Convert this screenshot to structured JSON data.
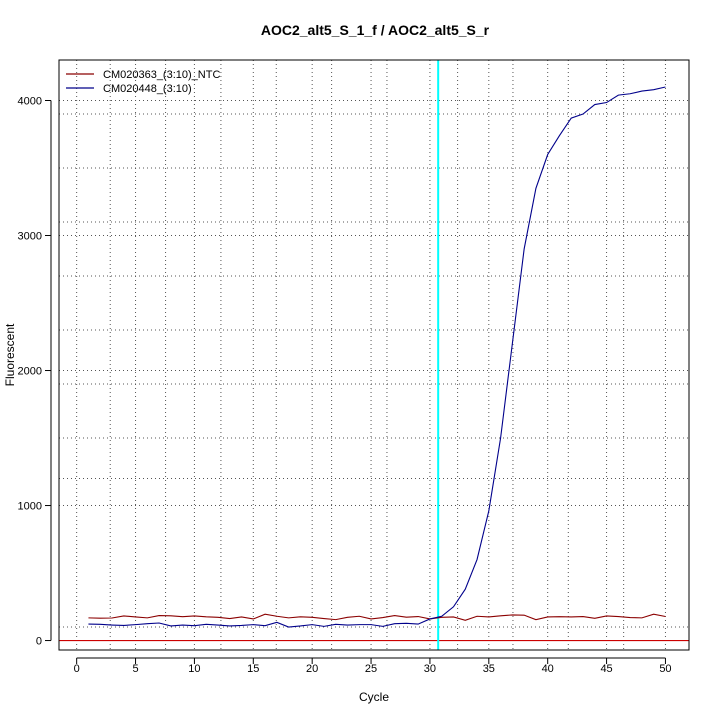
{
  "chart_data": {
    "type": "line",
    "title": "AOC2_alt5_S_1_f / AOC2_alt5_S_r",
    "xlabel": "Cycle",
    "ylabel": "Fluorescent",
    "xlim": [
      -1.5,
      52
    ],
    "ylim": [
      -70,
      4300
    ],
    "x_ticks": [
      0,
      5,
      10,
      15,
      20,
      25,
      30,
      35,
      40,
      45,
      50
    ],
    "y_ticks": [
      0,
      1000,
      2000,
      3000,
      4000
    ],
    "minor_x_grid": [
      2.85,
      7.55,
      12.25,
      16.95,
      21.65,
      26.35,
      32.35,
      37.05,
      41.75,
      46.45
    ],
    "minor_y_grid": [
      100,
      1000,
      1200,
      1500,
      1900,
      2300,
      2700,
      3100,
      3500,
      3900
    ],
    "grid": true,
    "legend": {
      "position": "top-left"
    },
    "threshold": {
      "type": "vertical",
      "x": 30.7,
      "color": "#00ffff"
    },
    "baseline": {
      "type": "horizontal",
      "y": 0,
      "color": "#cc0000"
    },
    "x": [
      1,
      2,
      3,
      4,
      5,
      6,
      7,
      8,
      9,
      10,
      11,
      12,
      13,
      14,
      15,
      16,
      17,
      18,
      19,
      20,
      21,
      22,
      23,
      24,
      25,
      26,
      27,
      28,
      29,
      30,
      31,
      32,
      33,
      34,
      35,
      36,
      37,
      38,
      39,
      40,
      41,
      42,
      43,
      44,
      45,
      46,
      47,
      48,
      49,
      50
    ],
    "series": [
      {
        "name": "CM020363_(3:10)_NTC",
        "color": "#8b0000",
        "values": [
          168,
          166,
          167,
          182,
          175,
          168,
          185,
          183,
          177,
          182,
          176,
          172,
          163,
          175,
          160,
          195,
          180,
          168,
          176,
          172,
          163,
          155,
          172,
          180,
          160,
          170,
          185,
          173,
          178,
          160,
          172,
          175,
          150,
          180,
          175,
          183,
          190,
          188,
          155,
          175,
          177,
          175,
          178,
          165,
          182,
          178,
          170,
          168,
          195,
          178
        ]
      },
      {
        "name": "CM020448_(3:10)",
        "color": "#00008b",
        "values": [
          122,
          120,
          115,
          112,
          118,
          125,
          130,
          108,
          115,
          110,
          120,
          115,
          108,
          112,
          118,
          110,
          135,
          100,
          108,
          118,
          105,
          120,
          115,
          118,
          118,
          105,
          125,
          128,
          122,
          160,
          180,
          250,
          380,
          600,
          960,
          1500,
          2200,
          2900,
          3350,
          3600,
          3740,
          3870,
          3900,
          3970,
          3985,
          4040,
          4050,
          4070,
          4080,
          4100
        ]
      }
    ]
  }
}
